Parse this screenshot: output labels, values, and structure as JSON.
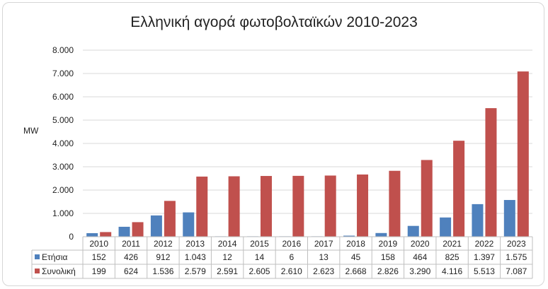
{
  "chart_data": {
    "type": "bar",
    "title": "Ελληνική αγορά φωτοβολταϊκών 2010-2023",
    "ylabel": "MW",
    "xlabel": "",
    "ylim": [
      0,
      8000
    ],
    "yticks": [
      "0",
      "1.000",
      "2.000",
      "3.000",
      "4.000",
      "5.000",
      "6.000",
      "7.000",
      "8.000"
    ],
    "grid": true,
    "legend": "table",
    "categories": [
      "2010",
      "2011",
      "2012",
      "2013",
      "2014",
      "2015",
      "2016",
      "2017",
      "2018",
      "2019",
      "2020",
      "2021",
      "2022",
      "2023"
    ],
    "series": [
      {
        "name": "Ετήσια",
        "color": "#4f81bd",
        "values": [
          152,
          426,
          912,
          1043,
          12,
          14,
          6,
          13,
          45,
          158,
          464,
          825,
          1397,
          1575
        ],
        "labels": [
          "152",
          "426",
          "912",
          "1.043",
          "12",
          "14",
          "6",
          "13",
          "45",
          "158",
          "464",
          "825",
          "1.397",
          "1.575"
        ]
      },
      {
        "name": "Συνολική",
        "color": "#c0504d",
        "values": [
          199,
          624,
          1536,
          2579,
          2591,
          2605,
          2610,
          2623,
          2668,
          2826,
          3290,
          4116,
          5513,
          7087
        ],
        "labels": [
          "199",
          "624",
          "1.536",
          "2.579",
          "2.591",
          "2.605",
          "2.610",
          "2.623",
          "2.668",
          "2.826",
          "3.290",
          "4.116",
          "5.513",
          "7.087"
        ]
      }
    ]
  }
}
